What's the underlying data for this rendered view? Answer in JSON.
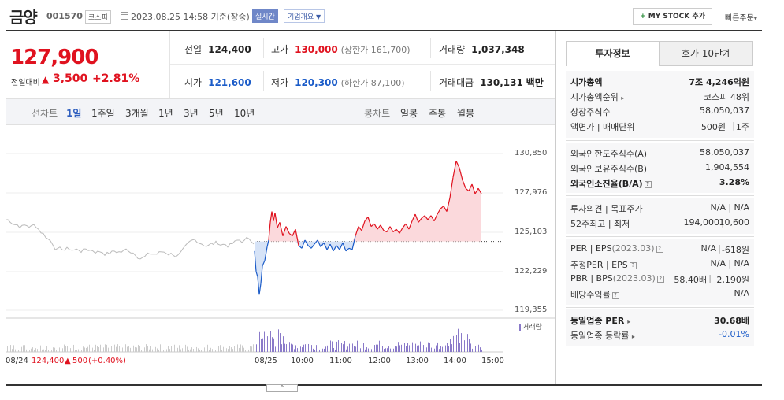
{
  "header": {
    "stock_name": "금양",
    "stock_code": "001570",
    "market": "코스피",
    "date_text": "2023.08.25 14:58 기준(장중)",
    "realtime": "실시간",
    "company_overview": "기업개요",
    "mystock_label": "MY STOCK 추가",
    "quick_order": "빠른주문"
  },
  "price": {
    "current": "127,900",
    "prev_diff_label": "전일대비",
    "diff": "3,500",
    "diff_pct": "+2.81%"
  },
  "stats": {
    "prev_close_label": "전일",
    "prev_close": "124,400",
    "high_label": "고가",
    "high": "130,000",
    "upper_limit": "(상한가 161,700)",
    "volume_label": "거래량",
    "volume": "1,037,348",
    "open_label": "시가",
    "open": "121,600",
    "low_label": "저가",
    "low": "120,300",
    "lower_limit": "(하한가 87,100)",
    "amount_label": "거래대금",
    "amount": "130,131",
    "amount_unit": "백만"
  },
  "period": {
    "title": "선차트",
    "tabs": [
      "1일",
      "1주일",
      "3개월",
      "1년",
      "3년",
      "5년",
      "10년"
    ],
    "candle_title": "봉차트",
    "candle_tabs": [
      "일봉",
      "주봉",
      "월봉"
    ]
  },
  "chart_data": {
    "type": "line",
    "y_ticks": [
      "130,850",
      "127,976",
      "125,103",
      "122,229",
      "119,355"
    ],
    "ylim": [
      119355,
      130850
    ],
    "reference_price": 124400,
    "x_ticks": [
      "08/24",
      "08/25",
      "10:00",
      "11:00",
      "12:00",
      "13:00",
      "14:00",
      "15:00"
    ],
    "prev_day_label": "08/24",
    "prev_day_price": "124,400",
    "prev_day_change": "500",
    "prev_day_pct": "(+0.40%)",
    "volume_legend": "거래량",
    "colors": {
      "up": "#e0121f",
      "down": "#1a5bc8",
      "prev": "#bbbbbb",
      "volume": "#8a7ac9"
    }
  },
  "right_panel": {
    "tab_active": "투자정보",
    "tab_inactive": "호가 10단계",
    "market_cap_label": "시가총액",
    "market_cap": "7조 4,246억원",
    "market_cap_rank_label": "시가총액순위",
    "market_cap_rank": "코스피 48위",
    "listed_shares_label": "상장주식수",
    "listed_shares": "58,050,037",
    "par_label": "액면가 | 매매단위",
    "par": "500원",
    "par_unit": "1주",
    "foreign_limit_label": "외국인한도주식수(A)",
    "foreign_limit": "58,050,037",
    "foreign_hold_label": "외국인보유주식수(B)",
    "foreign_hold": "1,904,554",
    "foreign_ratio_label": "외국인소진율(B/A)",
    "foreign_ratio": "3.28%",
    "opinion_label": "투자의견 | 목표주가",
    "opinion": "N/A",
    "target": "N/A",
    "w52_label": "52주최고 | 최저",
    "w52_high": "194,000",
    "w52_low": "10,600",
    "per_label": "PER | EPS",
    "per_year": "(2023.03)",
    "per": "N/A",
    "eps": "-618원",
    "est_label": "추정PER | EPS",
    "est_per": "N/A",
    "est_eps": "N/A",
    "pbr_label": "PBR | BPS",
    "pbr_year": "(2023.03)",
    "pbr": "58.40배",
    "bps": "2,190원",
    "div_label": "배당수익률",
    "div": "N/A",
    "sector_per_label": "동일업종 PER",
    "sector_per": "30.68배",
    "sector_chg_label": "동일업종 등락률",
    "sector_chg": "-0.01%"
  }
}
